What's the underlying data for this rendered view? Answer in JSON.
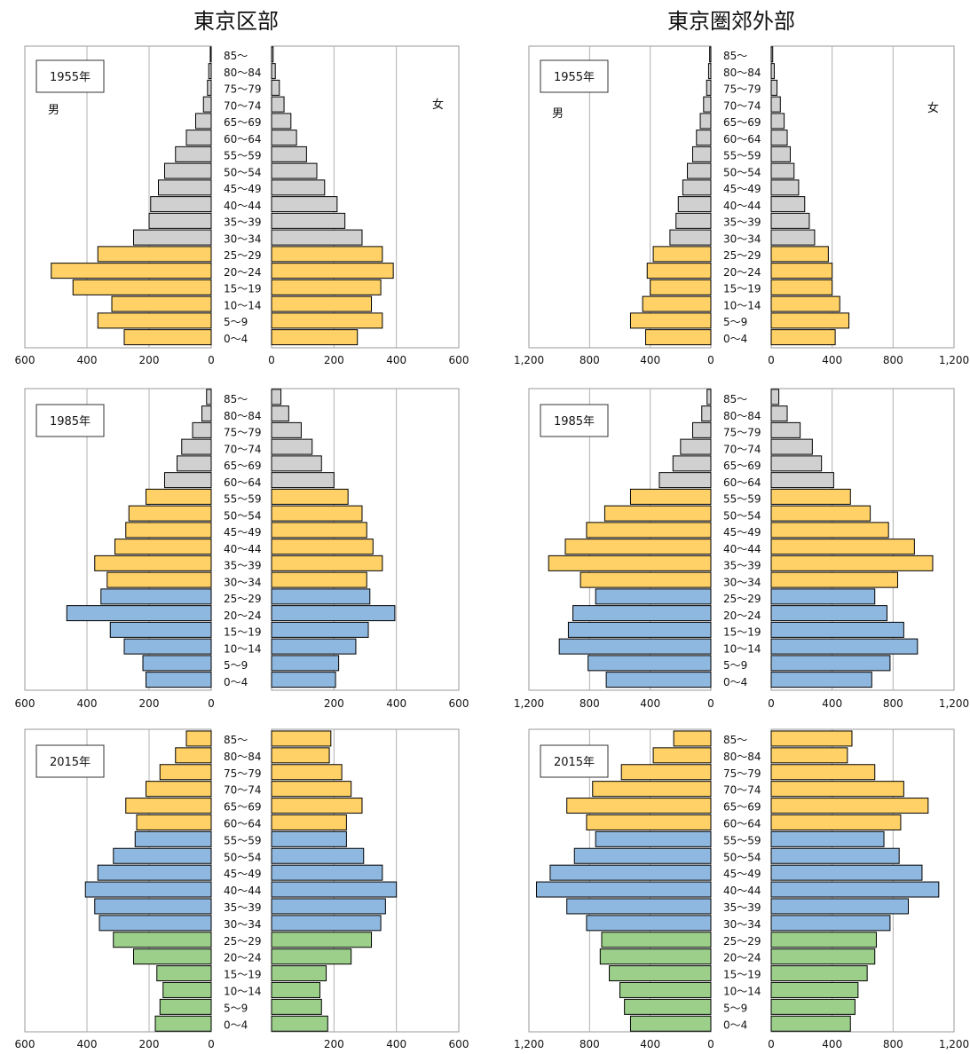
{
  "titles": {
    "ku": "東京区部",
    "kogai": "東京圏郊外部"
  },
  "sex_labels": {
    "male": "男",
    "female": "女"
  },
  "colors": {
    "gray": "#d0d0d0",
    "orange": "#ffd166",
    "blue": "#8fb8e0",
    "green": "#9ccf8a",
    "grid": "#b0b0b0",
    "frame": "#9a9a9a",
    "bar_border": "#000000"
  },
  "age_groups": [
    "85～",
    "80～84",
    "75～79",
    "70～74",
    "65～69",
    "60～64",
    "55～59",
    "50～54",
    "45～49",
    "40～44",
    "35～39",
    "30～34",
    "25～29",
    "20～24",
    "15～19",
    "10～14",
    "5～9",
    "0～4"
  ],
  "chart_data": [
    {
      "type": "bar",
      "region": "東京区部",
      "year": "1955年",
      "axis_max": 600,
      "left_ticks": [
        "600",
        "400",
        "200",
        "0"
      ],
      "right_ticks": [
        "0",
        "200",
        "400",
        "600"
      ],
      "male": [
        3,
        8,
        12,
        25,
        50,
        80,
        115,
        150,
        170,
        195,
        200,
        250,
        365,
        515,
        445,
        320,
        365,
        280
      ],
      "female": [
        5,
        12,
        25,
        40,
        62,
        80,
        112,
        145,
        170,
        210,
        235,
        290,
        355,
        390,
        350,
        320,
        355,
        275
      ],
      "colors": [
        "gray",
        "gray",
        "gray",
        "gray",
        "gray",
        "gray",
        "gray",
        "gray",
        "gray",
        "gray",
        "gray",
        "gray",
        "orange",
        "orange",
        "orange",
        "orange",
        "orange",
        "orange"
      ]
    },
    {
      "type": "bar",
      "region": "東京圏郊外部",
      "year": "1955年",
      "axis_max": 1200,
      "left_ticks": [
        "1,200",
        "800",
        "400",
        "0"
      ],
      "right_ticks": [
        "0",
        "400",
        "800",
        "1,200"
      ],
      "male": [
        8,
        15,
        28,
        48,
        70,
        95,
        120,
        155,
        185,
        215,
        230,
        270,
        380,
        420,
        400,
        450,
        530,
        430
      ],
      "female": [
        10,
        20,
        38,
        60,
        85,
        105,
        125,
        150,
        180,
        220,
        250,
        285,
        375,
        400,
        400,
        450,
        510,
        420
      ],
      "colors": [
        "gray",
        "gray",
        "gray",
        "gray",
        "gray",
        "gray",
        "gray",
        "gray",
        "gray",
        "gray",
        "gray",
        "gray",
        "orange",
        "orange",
        "orange",
        "orange",
        "orange",
        "orange"
      ]
    },
    {
      "type": "bar",
      "region": "東京区部",
      "year": "1985年",
      "axis_max": 600,
      "left_ticks": [
        "600",
        "400",
        "200",
        "0"
      ],
      "right_ticks": [
        "200",
        "400",
        "600"
      ],
      "male": [
        15,
        30,
        60,
        95,
        110,
        150,
        210,
        265,
        275,
        310,
        375,
        335,
        355,
        465,
        325,
        280,
        220,
        210
      ],
      "female": [
        30,
        55,
        95,
        130,
        160,
        200,
        245,
        290,
        305,
        325,
        355,
        305,
        315,
        395,
        310,
        270,
        215,
        205
      ],
      "colors": [
        "gray",
        "gray",
        "gray",
        "gray",
        "gray",
        "gray",
        "orange",
        "orange",
        "orange",
        "orange",
        "orange",
        "orange",
        "blue",
        "blue",
        "blue",
        "blue",
        "blue",
        "blue"
      ]
    },
    {
      "type": "bar",
      "region": "東京圏郊外部",
      "year": "1985年",
      "axis_max": 1200,
      "left_ticks": [
        "1,200",
        "800",
        "400",
        "0"
      ],
      "right_ticks": [
        "0",
        "400",
        "800",
        "1,200"
      ],
      "male": [
        25,
        60,
        120,
        200,
        250,
        340,
        530,
        700,
        820,
        960,
        1070,
        860,
        760,
        910,
        940,
        1000,
        810,
        690
      ],
      "female": [
        50,
        105,
        190,
        270,
        330,
        410,
        520,
        650,
        770,
        940,
        1060,
        830,
        680,
        760,
        870,
        960,
        780,
        660
      ],
      "colors": [
        "gray",
        "gray",
        "gray",
        "gray",
        "gray",
        "gray",
        "orange",
        "orange",
        "orange",
        "orange",
        "orange",
        "orange",
        "blue",
        "blue",
        "blue",
        "blue",
        "blue",
        "blue"
      ]
    },
    {
      "type": "bar",
      "region": "東京区部",
      "year": "2015年",
      "axis_max": 600,
      "left_ticks": [
        "600",
        "400",
        "200",
        "0"
      ],
      "right_ticks": [
        "200",
        "400",
        "600"
      ],
      "male": [
        80,
        115,
        165,
        210,
        275,
        240,
        245,
        315,
        365,
        405,
        375,
        360,
        315,
        250,
        175,
        155,
        165,
        180
      ],
      "female": [
        190,
        185,
        225,
        255,
        290,
        240,
        240,
        295,
        355,
        400,
        365,
        350,
        320,
        255,
        175,
        155,
        160,
        180
      ],
      "colors": [
        "orange",
        "orange",
        "orange",
        "orange",
        "orange",
        "orange",
        "blue",
        "blue",
        "blue",
        "blue",
        "blue",
        "blue",
        "green",
        "green",
        "green",
        "green",
        "green",
        "green"
      ]
    },
    {
      "type": "bar",
      "region": "東京圏郊外部",
      "year": "2015年",
      "axis_max": 1200,
      "left_ticks": [
        "1,200",
        "800",
        "400",
        "0"
      ],
      "right_ticks": [
        "0",
        "400",
        "800",
        "1,200"
      ],
      "male": [
        245,
        380,
        590,
        780,
        950,
        820,
        760,
        900,
        1060,
        1150,
        950,
        820,
        720,
        730,
        670,
        600,
        570,
        530
      ],
      "female": [
        530,
        500,
        680,
        870,
        1030,
        850,
        740,
        840,
        990,
        1100,
        900,
        780,
        690,
        680,
        630,
        570,
        550,
        520
      ],
      "colors": [
        "orange",
        "orange",
        "orange",
        "orange",
        "orange",
        "orange",
        "blue",
        "blue",
        "blue",
        "blue",
        "blue",
        "blue",
        "green",
        "green",
        "green",
        "green",
        "green",
        "green"
      ]
    }
  ]
}
